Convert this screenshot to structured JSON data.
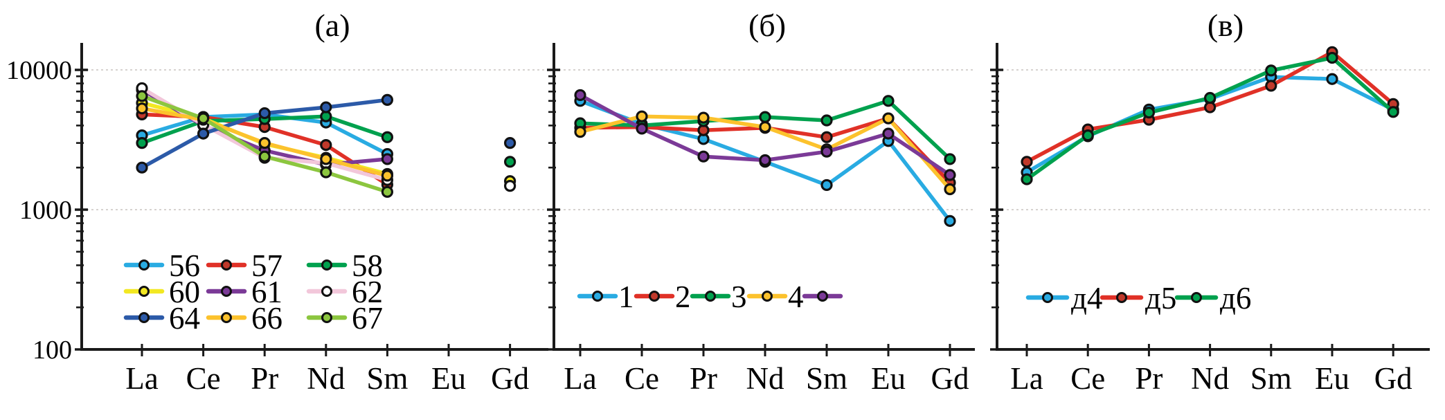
{
  "figure": {
    "background": "#ffffff",
    "axis_color": "#1a1a1a",
    "grid_color": "#c9c3bf",
    "marker_ring_color": "#111111",
    "y_axis": {
      "scale": "log",
      "min": 100,
      "max": 15000,
      "gridlines": [
        10000,
        1000
      ]
    },
    "x_categories": [
      "La",
      "Ce",
      "Pr",
      "Nd",
      "Sm",
      "Eu",
      "Gd"
    ]
  },
  "chart_data": [
    {
      "type": "line",
      "panel_id": "a",
      "title": "(a)",
      "log_scale": true,
      "ylim": [
        100,
        15000
      ],
      "y_tick_labels": [
        {
          "text": "10000",
          "value": 10000
        },
        {
          "text": "1000",
          "value": 1000
        },
        {
          "text": "100",
          "value": 100
        }
      ],
      "y_gridlines": [
        10000,
        1000
      ],
      "categories": [
        "La",
        "Ce",
        "Pr",
        "Nd",
        "Sm",
        "Eu",
        "Gd"
      ],
      "legend": {
        "layout": "grid",
        "rows": [
          [
            "56",
            "57",
            "58"
          ],
          [
            "60",
            "61",
            "62"
          ],
          [
            "64",
            "66",
            "67"
          ]
        ]
      },
      "series": [
        {
          "id": "56",
          "label": "56",
          "color": "#29abe2",
          "marker_fill": "#29abe2",
          "values": [
            3400,
            4600,
            4800,
            4200,
            2500,
            null,
            null
          ]
        },
        {
          "id": "57",
          "label": "57",
          "color": "#e03127",
          "marker_fill": "#c0392b",
          "values": [
            4800,
            4600,
            3900,
            2900,
            1510,
            null,
            null
          ]
        },
        {
          "id": "58",
          "label": "58",
          "color": "#00a14e",
          "marker_fill": "#00a14e",
          "values": [
            3000,
            4300,
            4450,
            4650,
            3300,
            null,
            2200
          ]
        },
        {
          "id": "60",
          "label": "60",
          "color": "#f2e822",
          "marker_fill": "#f2e822",
          "values": [
            5800,
            4500,
            2950,
            2350,
            1800,
            null,
            1600
          ]
        },
        {
          "id": "61",
          "label": "61",
          "color": "#7b3a97",
          "marker_fill": "#7b3a97",
          "values": [
            7200,
            4000,
            2650,
            2100,
            2300,
            null,
            null
          ]
        },
        {
          "id": "62",
          "label": "62",
          "color": "#f2c7da",
          "marker_fill": "#ffffff",
          "values": [
            7400,
            4050,
            2350,
            2150,
            1630,
            null,
            1480
          ]
        },
        {
          "id": "64",
          "label": "64",
          "color": "#2c5aa8",
          "marker_fill": "#2c5aa8",
          "values": [
            2000,
            3500,
            4900,
            5400,
            6100,
            null,
            3000
          ]
        },
        {
          "id": "66",
          "label": "66",
          "color": "#fcc22d",
          "marker_fill": "#fcc22d",
          "values": [
            5300,
            4400,
            3000,
            2300,
            1750,
            null,
            null
          ]
        },
        {
          "id": "67",
          "label": "67",
          "color": "#8cc63f",
          "marker_fill": "#8cc63f",
          "values": [
            6500,
            4500,
            2400,
            1850,
            1340,
            null,
            null
          ]
        }
      ]
    },
    {
      "type": "line",
      "panel_id": "b",
      "title": "(б)",
      "log_scale": true,
      "ylim": [
        100,
        15000
      ],
      "y_tick_labels": [],
      "y_gridlines": [
        10000,
        1000
      ],
      "categories": [
        "La",
        "Ce",
        "Pr",
        "Nd",
        "Sm",
        "Eu",
        "Gd"
      ],
      "legend": {
        "layout": "row",
        "items": [
          "1",
          "2",
          "3",
          "4",
          ""
        ]
      },
      "series": [
        {
          "id": "1",
          "label": "1",
          "color": "#29abe2",
          "marker_fill": "#29abe2",
          "values": [
            6000,
            4100,
            3200,
            2200,
            1500,
            3100,
            830
          ]
        },
        {
          "id": "2",
          "label": "2",
          "color": "#e03127",
          "marker_fill": "#c0392b",
          "values": [
            3850,
            3900,
            3700,
            3850,
            3300,
            4500,
            1560
          ]
        },
        {
          "id": "3",
          "label": "3",
          "color": "#00a14e",
          "marker_fill": "#00a14e",
          "values": [
            4150,
            4000,
            4300,
            4600,
            4350,
            6000,
            2300
          ]
        },
        {
          "id": "4",
          "label": "4",
          "color": "#fcc22d",
          "marker_fill": "#fcc22d",
          "values": [
            3600,
            4650,
            4550,
            3900,
            2700,
            4500,
            1400
          ]
        },
        {
          "id": "5",
          "label": "",
          "color": "#7b3a97",
          "marker_fill": "#7b3a97",
          "values": [
            6600,
            3800,
            2400,
            2260,
            2600,
            3500,
            1770
          ]
        }
      ]
    },
    {
      "type": "line",
      "panel_id": "v",
      "title": "(в)",
      "log_scale": true,
      "ylim": [
        100,
        15000
      ],
      "y_tick_labels": [],
      "y_gridlines": [
        10000,
        1000
      ],
      "categories": [
        "La",
        "Ce",
        "Pr",
        "Nd",
        "Sm",
        "Eu",
        "Gd"
      ],
      "legend": {
        "layout": "row",
        "items": [
          "д4",
          "д5",
          "д6"
        ]
      },
      "series": [
        {
          "id": "d4",
          "label": "д4",
          "color": "#29abe2",
          "marker_fill": "#29abe2",
          "values": [
            1850,
            3350,
            5200,
            6200,
            8900,
            8600,
            5200
          ]
        },
        {
          "id": "d5",
          "label": "д5",
          "color": "#e03127",
          "marker_fill": "#c0392b",
          "values": [
            2200,
            3750,
            4400,
            5400,
            7700,
            13400,
            5700
          ]
        },
        {
          "id": "d6",
          "label": "д6",
          "color": "#00a14e",
          "marker_fill": "#00a14e",
          "values": [
            1650,
            3400,
            4950,
            6300,
            9900,
            12200,
            5000
          ]
        }
      ]
    }
  ]
}
